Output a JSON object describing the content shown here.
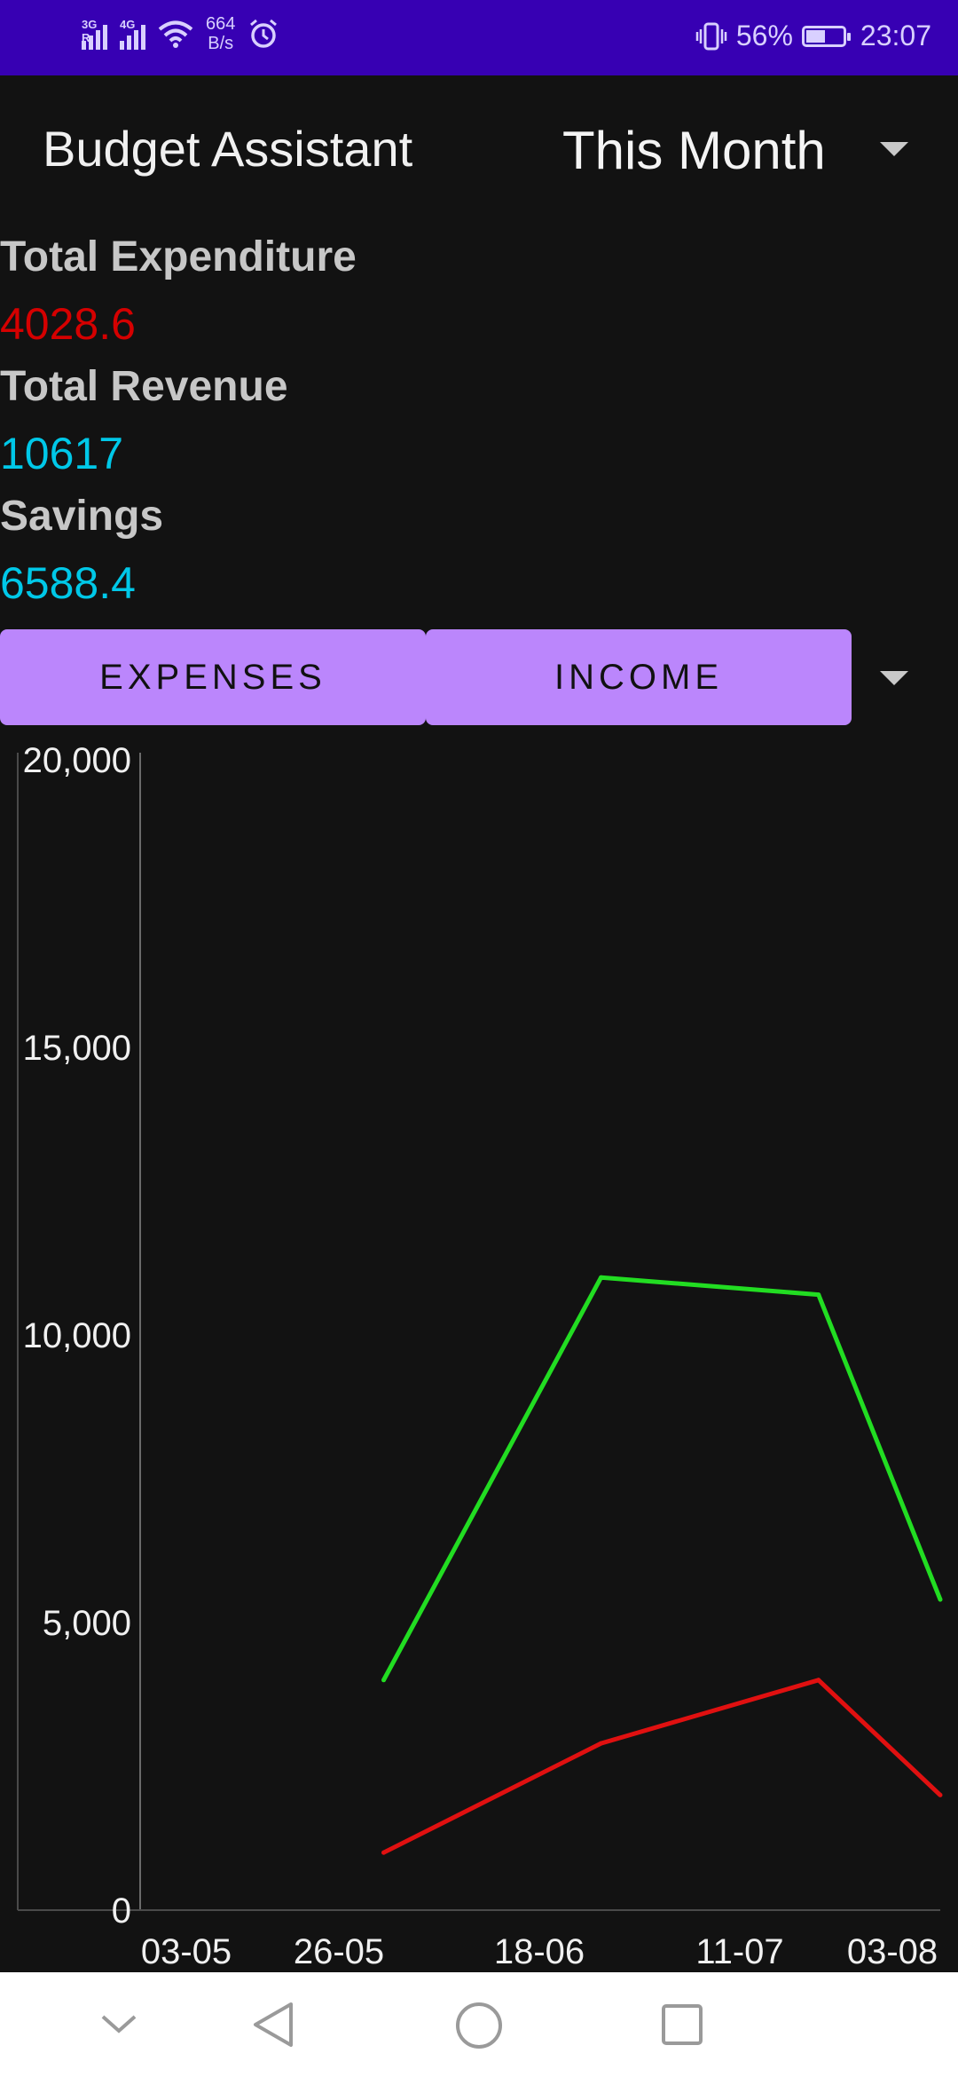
{
  "status_bar": {
    "network_1": "3G R",
    "network_2": "4G",
    "net_speed_value": "664",
    "net_speed_unit": "B/s",
    "battery_percent": "56%",
    "battery_level": 0.56,
    "time": "23:07"
  },
  "toolbar": {
    "title": "Budget Assistant",
    "period_selected": "This Month"
  },
  "summary": {
    "expenditure_label": "Total Expenditure",
    "expenditure_value": "4028.6",
    "revenue_label": "Total Revenue",
    "revenue_value": "10617",
    "savings_label": "Savings",
    "savings_value": "6588.4"
  },
  "buttons": {
    "expenses": "EXPENSES",
    "income": "INCOME"
  },
  "colors": {
    "accent": "#bb86fc",
    "status_bar": "#3700b3",
    "expenditure": "#d50000",
    "revenue": "#00c8e8",
    "income_line": "#22dd22",
    "expense_line": "#e01010"
  },
  "chart_data": {
    "type": "line",
    "x_tick_labels": [
      "03-05",
      "26-05",
      "18-06",
      "11-07",
      "03-08"
    ],
    "y_tick_labels": [
      "0",
      "5,000",
      "10,000",
      "15,000",
      "20,000"
    ],
    "ylim": [
      0,
      20000
    ],
    "x_range_days": [
      0,
      92
    ],
    "series": [
      {
        "color": "#22dd22",
        "points": [
          [
            28,
            4000
          ],
          [
            53,
            11000
          ],
          [
            78,
            10700
          ],
          [
            92,
            5400
          ]
        ]
      },
      {
        "color": "#e01010",
        "points": [
          [
            28,
            1000
          ],
          [
            53,
            2900
          ],
          [
            78,
            4000
          ],
          [
            92,
            2000
          ]
        ]
      }
    ]
  }
}
